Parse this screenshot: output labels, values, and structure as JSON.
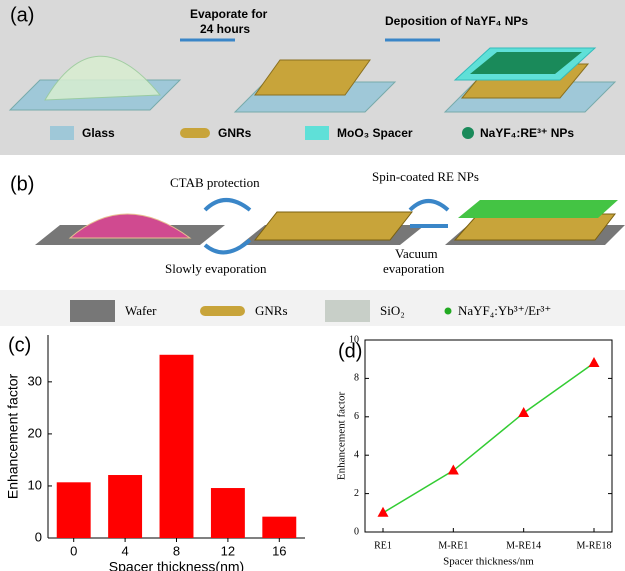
{
  "panel_a": {
    "label": "(a)",
    "step1": [
      "Evaporate for",
      "24 hours"
    ],
    "step2": "Deposition of NaYF₄ NPs",
    "legend": [
      "Glass",
      "GNRs",
      "MoO₃ Spacer",
      "NaYF₄:RE³⁺ NPs"
    ]
  },
  "panel_b": {
    "label": "(b)",
    "top_left": "CTAB protection",
    "bottom_left": "Slowly evaporation",
    "top_right": "Spin-coated RE NPs",
    "bottom_right": [
      "Vacuum",
      "evaporation"
    ],
    "legend": [
      "Wafer",
      "GNRs",
      "SiO₂",
      "NaYF₄:Yb³⁺/Er³⁺"
    ]
  },
  "chart_data": [
    {
      "type": "bar",
      "panel_label": "(c)",
      "x_label": "Spacer thickness(nm)",
      "y_label": "Enhancement factor",
      "categories": [
        "0",
        "4",
        "8",
        "12",
        "16"
      ],
      "values": [
        10.7,
        12.1,
        35.2,
        9.6,
        4.1
      ],
      "color": "#ff0000",
      "ylim": [
        0,
        39
      ],
      "yticks": [
        0,
        10,
        20,
        30
      ]
    },
    {
      "type": "line",
      "panel_label": "(d)",
      "x_label": "Spacer thickness/nm",
      "y_label": "Enhancement factor",
      "categories": [
        "RE1",
        "M-RE1",
        "M-RE14",
        "M-RE18"
      ],
      "series": [
        {
          "values": [
            1.0,
            3.2,
            6.2,
            8.8
          ],
          "color": "#33cc33",
          "marker_color": "#ff0000"
        }
      ],
      "ylim": [
        0,
        10
      ],
      "yticks": [
        0,
        2,
        4,
        6,
        8,
        10
      ]
    }
  ]
}
